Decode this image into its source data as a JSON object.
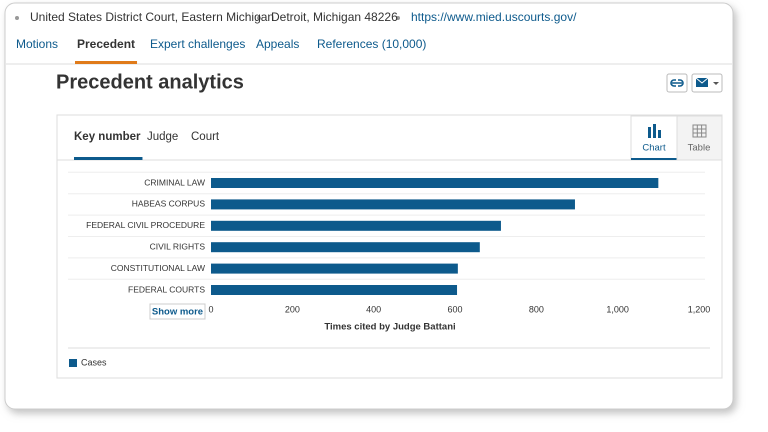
{
  "header": {
    "items": [
      "United States District Court, Eastern Michigan",
      "Detroit, Michigan 48226"
    ],
    "link": "https://www.mied.uscourts.gov/"
  },
  "tabs": [
    "Motions",
    "Precedent",
    "Expert challenges",
    "Appeals",
    "References (10,000)"
  ],
  "active_tab": 1,
  "title": "Precedent analytics",
  "panel": {
    "tabs": [
      "Key number",
      "Judge",
      "Court"
    ],
    "views": [
      "Chart",
      "Table"
    ],
    "show_more": "Show more"
  },
  "chart": {
    "type": "bar",
    "orientation": "horizontal",
    "categories": [
      "CRIMINAL LAW",
      "HABEAS CORPUS",
      "FEDERAL CIVIL PROCEDURE",
      "CIVIL RIGHTS",
      "CONSTITUTIONAL LAW",
      "FEDERAL COURTS"
    ],
    "series": [
      {
        "name": "Cases",
        "color": "#0d5a8c",
        "values": [
          1100,
          895,
          713,
          661,
          607,
          605
        ]
      }
    ],
    "xlabel": "Times cited by Judge Battani",
    "xlim": [
      0,
      1200
    ],
    "xticks": [
      0,
      200,
      400,
      600,
      800,
      {
        "value": 1000,
        "label": "1,000"
      },
      {
        "value": 1200,
        "label": "1,200"
      }
    ]
  }
}
